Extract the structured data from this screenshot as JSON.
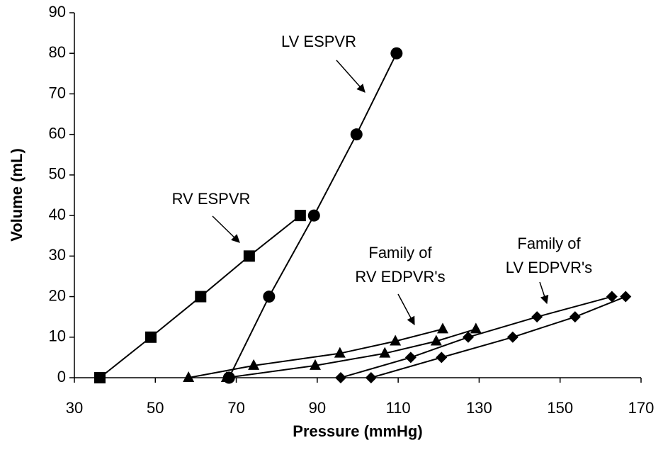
{
  "chart_data": {
    "type": "line",
    "xlabel": "Pressure (mmHg)",
    "ylabel": "Volume (mL)",
    "xlim": [
      30,
      170
    ],
    "xticks": [
      30,
      50,
      70,
      90,
      110,
      130,
      150,
      170
    ],
    "ylim": [
      0,
      90
    ],
    "yticks": [
      0,
      10,
      20,
      30,
      40,
      50,
      60,
      70,
      80,
      90
    ],
    "grid": false,
    "series": [
      {
        "marker": "square",
        "color": "#000000",
        "x": [
          36.3,
          48.9,
          61.2,
          73.2,
          85.8
        ],
        "values": [
          0,
          10,
          20,
          30,
          40
        ]
      },
      {
        "marker": "circle",
        "color": "#000000",
        "x": [
          68.2,
          78.1,
          89.2,
          99.7,
          109.6
        ],
        "values": [
          0,
          20,
          40,
          60,
          80
        ]
      },
      {
        "marker": "triangle",
        "color": "#000000",
        "x": [
          58.2,
          74.3,
          95.6,
          109.3,
          121.0
        ],
        "values": [
          0,
          3,
          6,
          9,
          12
        ]
      },
      {
        "marker": "triangle",
        "color": "#000000",
        "x": [
          67.6,
          89.5,
          106.7,
          119.4,
          129.2
        ],
        "values": [
          0,
          3,
          6,
          9,
          12
        ]
      },
      {
        "marker": "diamond",
        "color": "#000000",
        "x": [
          95.8,
          113.1,
          127.3,
          144.3,
          162.8
        ],
        "values": [
          0,
          5,
          10,
          15,
          20
        ]
      },
      {
        "marker": "diamond",
        "color": "#000000",
        "x": [
          103.3,
          120.7,
          138.3,
          153.7,
          166.2
        ],
        "values": [
          0,
          5,
          10,
          15,
          20
        ]
      }
    ],
    "annotations": [
      {
        "lines": [
          "LV ESPVR"
        ]
      },
      {
        "lines": [
          "RV ESPVR"
        ]
      },
      {
        "lines": [
          "Family of",
          "RV EDPVR's"
        ]
      },
      {
        "lines": [
          "Family of",
          "LV EDPVR's"
        ]
      }
    ]
  }
}
